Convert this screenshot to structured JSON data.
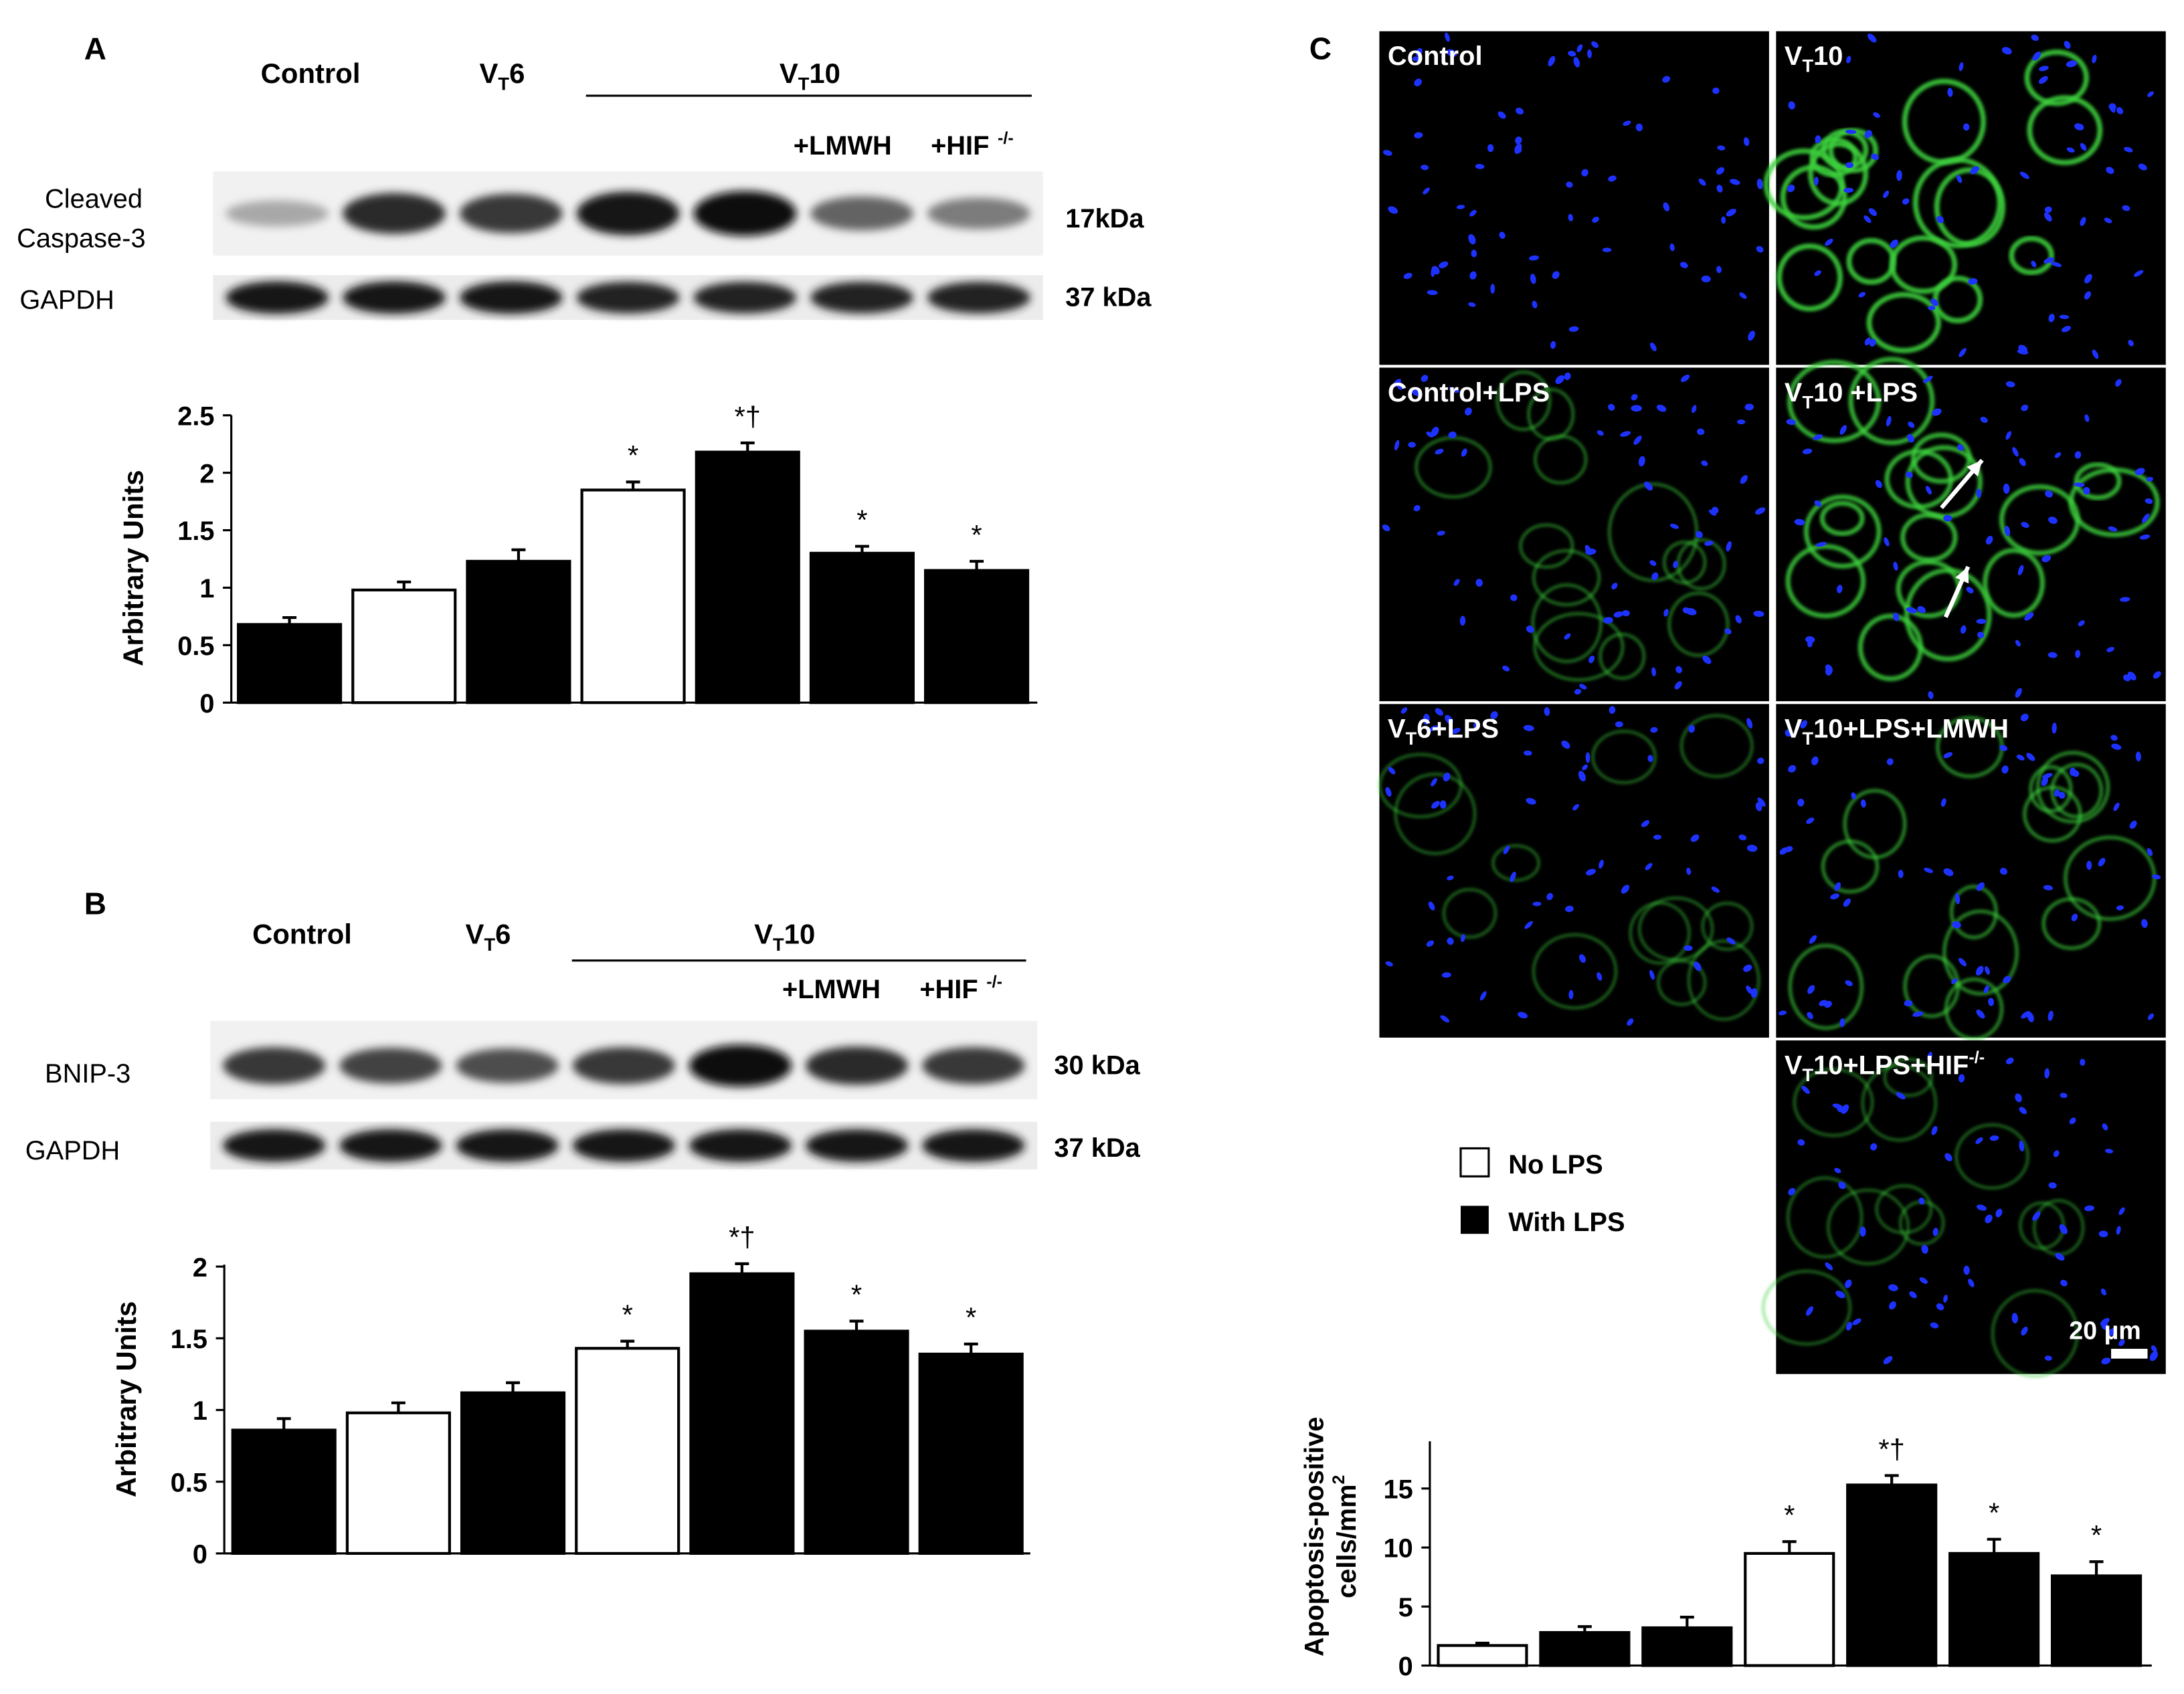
{
  "panels": {
    "A": {
      "letter": "A",
      "headers": {
        "control": "Control",
        "vt6_main": "V",
        "vt6_sub": "T",
        "vt6_tail": "6",
        "vt10_main": "V",
        "vt10_sub": "T",
        "vt10_tail": "10",
        "lmwh": "+LMWH",
        "hif_main": "+HIF",
        "hif_sup": "-/-"
      },
      "blot_labels": {
        "target_line1": "Cleaved",
        "target_line2": "Caspase-3",
        "loading": "GAPDH"
      },
      "kda": {
        "target": "17kDa",
        "loading": "37 kDa"
      },
      "band_intensity": {
        "target": [
          0.3,
          0.85,
          0.8,
          0.95,
          1.0,
          0.6,
          0.5
        ],
        "loading": [
          0.95,
          0.95,
          0.95,
          0.9,
          0.9,
          0.9,
          0.9
        ]
      }
    },
    "B": {
      "letter": "B",
      "headers": {
        "control": "Control",
        "vt6_main": "V",
        "vt6_sub": "T",
        "vt6_tail": "6",
        "vt10_main": "V",
        "vt10_sub": "T",
        "vt10_tail": "10",
        "lmwh": "+LMWH",
        "hif_main": "+HIF",
        "hif_sup": "-/-"
      },
      "blot_labels": {
        "target_line1": "BNIP-3",
        "loading": "GAPDH"
      },
      "kda": {
        "target": "30 kDa",
        "loading": "37 kDa"
      },
      "band_intensity": {
        "target": [
          0.8,
          0.75,
          0.7,
          0.8,
          1.0,
          0.85,
          0.8
        ],
        "loading": [
          0.95,
          0.95,
          0.95,
          0.95,
          0.95,
          0.95,
          0.95
        ]
      }
    },
    "C": {
      "letter": "C",
      "images": [
        {
          "label_main": "Control",
          "label_sub": "",
          "label_tail": "",
          "label_sup": "",
          "green": 0.0
        },
        {
          "label_main": "V",
          "label_sub": "T",
          "label_tail": "10",
          "label_sup": "",
          "green": 0.9
        },
        {
          "label_main": "Control+LPS",
          "label_sub": "",
          "label_tail": "",
          "label_sup": "",
          "green": 0.35
        },
        {
          "label_main": "V",
          "label_sub": "T",
          "label_tail": "10 +LPS",
          "label_sup": "",
          "green": 0.8
        },
        {
          "label_main": "V",
          "label_sub": "T",
          "label_tail": "6+LPS",
          "label_sup": "",
          "green": 0.3
        },
        {
          "label_main": "V",
          "label_sub": "T",
          "label_tail": "10+LPS+LMWH",
          "label_sup": "",
          "green": 0.5
        },
        {
          "label_main": "V",
          "label_sub": "T",
          "label_tail": "10+LPS+HIF",
          "label_sup": "-/-",
          "green": 0.3
        }
      ],
      "scale_bar": "20 µm"
    }
  },
  "legend": {
    "no_lps": "No LPS",
    "with_lps": "With LPS"
  },
  "colors": {
    "with_lps": "#000000",
    "no_lps": "#ffffff",
    "nuclei": "#1e32ff",
    "membrane": "#3cd23c"
  },
  "chart_data": [
    {
      "id": "A",
      "type": "bar",
      "categories": [
        "",
        "",
        "",
        "",
        "",
        "",
        ""
      ],
      "values": [
        0.68,
        0.98,
        1.23,
        1.85,
        2.18,
        1.3,
        1.15
      ],
      "errors": [
        0.06,
        0.07,
        0.1,
        0.07,
        0.08,
        0.06,
        0.08
      ],
      "fills": [
        "with",
        "no",
        "with",
        "no",
        "with",
        "with",
        "with"
      ],
      "annotations": [
        "",
        "",
        "",
        "*",
        "*†",
        "*",
        "*"
      ],
      "ylabel": "Arbitrary Units",
      "yticks": [
        "0",
        "0.5",
        "1",
        "1.5",
        "2",
        "2.5"
      ],
      "ylim": [
        0,
        2.5
      ]
    },
    {
      "id": "B",
      "type": "bar",
      "categories": [
        "",
        "",
        "",
        "",
        "",
        "",
        ""
      ],
      "values": [
        0.86,
        0.98,
        1.12,
        1.43,
        1.95,
        1.55,
        1.39
      ],
      "errors": [
        0.08,
        0.07,
        0.07,
        0.05,
        0.07,
        0.07,
        0.07
      ],
      "fills": [
        "with",
        "no",
        "with",
        "no",
        "with",
        "with",
        "with"
      ],
      "annotations": [
        "",
        "",
        "",
        "*",
        "*†",
        "*",
        "*"
      ],
      "ylabel": "Arbitrary Units",
      "yticks": [
        "0",
        "0.5",
        "1",
        "1.5",
        "2"
      ],
      "ylim": [
        0,
        2.15
      ]
    },
    {
      "id": "C",
      "type": "bar",
      "categories": [
        "",
        "",
        "",
        "",
        "",
        "",
        ""
      ],
      "values": [
        1.7,
        2.8,
        3.2,
        9.5,
        15.3,
        9.5,
        7.6
      ],
      "errors": [
        0.2,
        0.5,
        0.9,
        1.0,
        0.8,
        1.2,
        1.2
      ],
      "fills": [
        "no",
        "with",
        "with",
        "no",
        "with",
        "with",
        "with"
      ],
      "annotations": [
        "",
        "",
        "",
        "*",
        "*†",
        "*",
        "*"
      ],
      "ylabel_line1": "Apoptosis-positive",
      "ylabel_line2": "cells/mm",
      "ylabel_sup": "2",
      "yticks": [
        "0",
        "5",
        "10",
        "15"
      ],
      "ylim": [
        0,
        19
      ]
    }
  ]
}
